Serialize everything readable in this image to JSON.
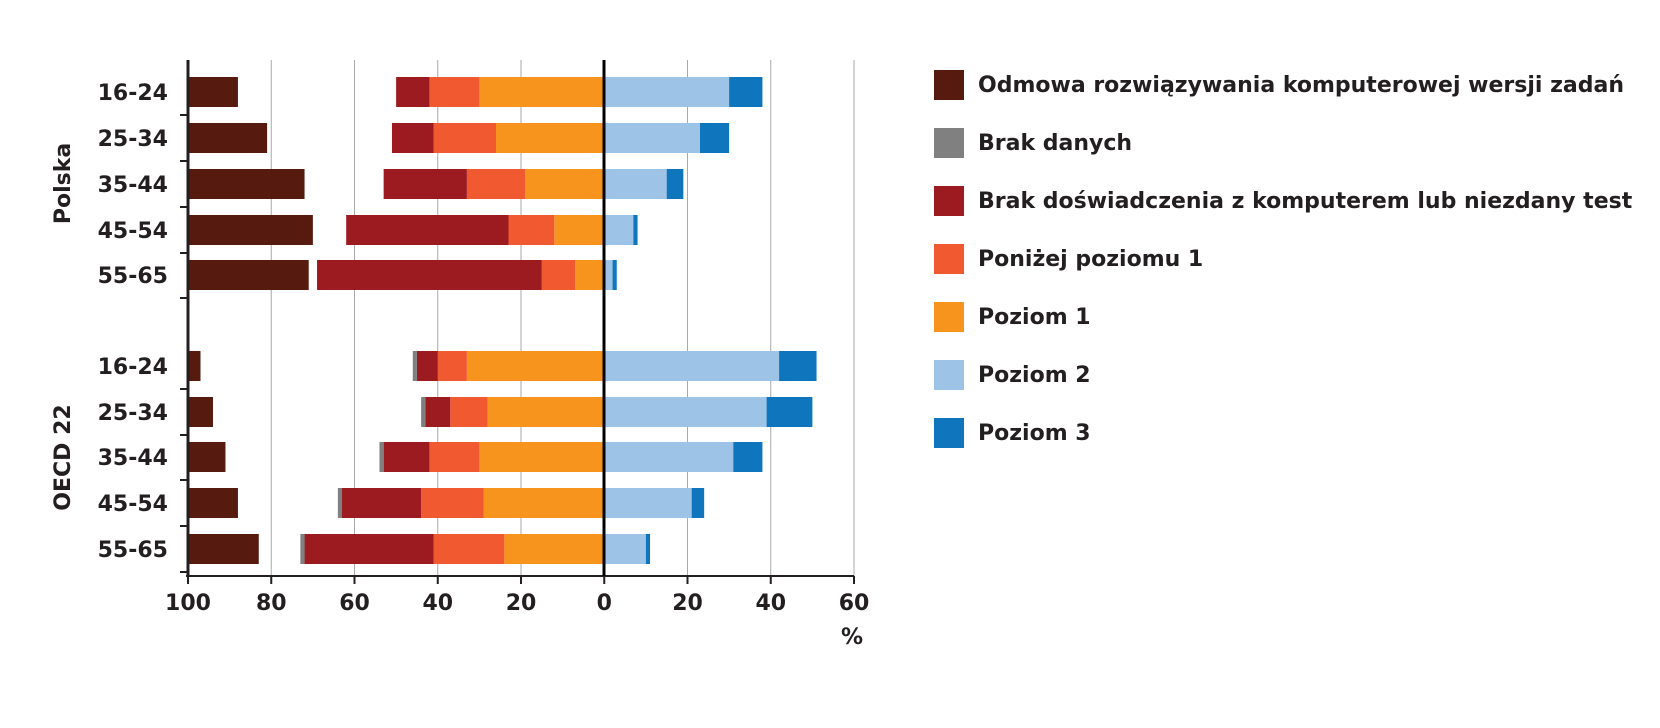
{
  "chart_data": {
    "type": "bar",
    "orientation": "horizontal",
    "stacking": "diverging",
    "xlabel": "%",
    "x_ticks": [
      "100",
      "80",
      "60",
      "40",
      "20",
      "0",
      "20",
      "40",
      "60"
    ],
    "xlim": [
      -100,
      60
    ],
    "groups": [
      {
        "name": "Polska",
        "categories": [
          "16-24",
          "25-34",
          "35-44",
          "45-54",
          "55-65"
        ]
      },
      {
        "name": "OECD 22",
        "categories": [
          "16-24",
          "25-34",
          "35-44",
          "45-54",
          "55-65"
        ]
      }
    ],
    "left_anchored_series": [
      {
        "name": "Odmowa rozwiązywania komputerowej wersji zadań",
        "color": "#561a0e",
        "values": [
          [
            12,
            19,
            28,
            30,
            29
          ],
          [
            3,
            6,
            9,
            12,
            17
          ]
        ]
      }
    ],
    "left_stack_series": [
      {
        "name": "Poziom 1",
        "color": "#f7941d",
        "values": [
          [
            30,
            26,
            19,
            12,
            7
          ],
          [
            33,
            28,
            30,
            29,
            24
          ]
        ]
      },
      {
        "name": "Poniżej poziomu 1",
        "color": "#f15a31",
        "values": [
          [
            12,
            15,
            14,
            11,
            8
          ],
          [
            7,
            9,
            12,
            15,
            17
          ]
        ]
      },
      {
        "name": "Brak doświadczenia z komputerem lub niezdany test",
        "color": "#9b1b20",
        "values": [
          [
            8,
            10,
            20,
            39,
            54
          ],
          [
            5,
            6,
            11,
            19,
            31
          ]
        ]
      },
      {
        "name": "Brak danych",
        "color": "#808080",
        "values": [
          [
            0,
            0,
            0,
            0,
            0
          ],
          [
            1,
            1,
            1,
            1,
            1
          ]
        ]
      }
    ],
    "right_stack_series": [
      {
        "name": "Poziom 2",
        "color": "#9dc3e6",
        "values": [
          [
            30,
            23,
            15,
            7,
            2
          ],
          [
            42,
            39,
            31,
            21,
            10
          ]
        ]
      },
      {
        "name": "Poziom 3",
        "color": "#0f75bc",
        "values": [
          [
            8,
            7,
            4,
            1,
            1
          ],
          [
            9,
            11,
            7,
            3,
            1
          ]
        ]
      }
    ],
    "legend": [
      {
        "label": "Odmowa rozwiązywania komputerowej wersji zadań",
        "color": "#561a0e"
      },
      {
        "label": "Brak danych",
        "color": "#808080"
      },
      {
        "label": "Brak doświadczenia z komputerem lub niezdany test",
        "color": "#9b1b20"
      },
      {
        "label": "Poniżej poziomu 1",
        "color": "#f15a31"
      },
      {
        "label": "Poziom 1",
        "color": "#f7941d"
      },
      {
        "label": "Poziom 2",
        "color": "#9dc3e6"
      },
      {
        "label": "Poziom 3",
        "color": "#0f75bc"
      }
    ],
    "legend_position": "right",
    "grid": true
  }
}
